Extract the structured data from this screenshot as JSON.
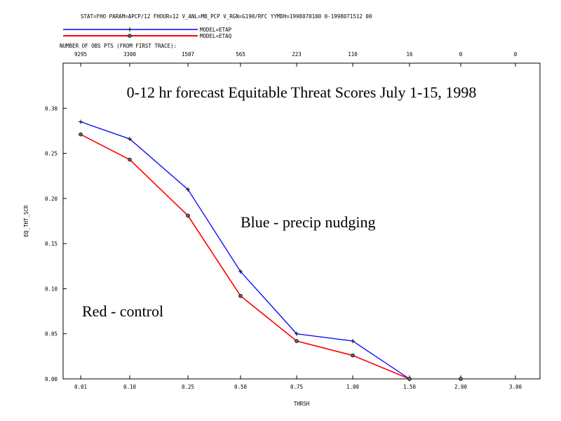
{
  "header_text": "STAT=FHO PARAM=APCP/12 FHOUR=12 V_ANL=MB_PCP V_RGN=G190/RFC YYMDH=1998070100 0-1998071512 00",
  "legend": [
    {
      "label": "MODEL=ETAP",
      "color": "#0000ff",
      "marker": "plus"
    },
    {
      "label": "MODEL=ETAQ",
      "color": "#ff0000",
      "marker": "circle"
    }
  ],
  "obs_header": "NUMBER OF OBS PTS (FROM FIRST TRACE):",
  "obs_counts": [
    "9295",
    "3300",
    "1507",
    "565",
    "223",
    "110",
    "16",
    "0",
    "0"
  ],
  "annotations": {
    "blue_note": "Blue - precip nudging",
    "red_note": "Red - control"
  },
  "chart_data": {
    "type": "line",
    "title": "0-12 hr forecast Equitable Threat Scores July 1-15, 1998",
    "xlabel": "THRSH",
    "ylabel": "EQ_THT_SCR",
    "categories": [
      "0.01",
      "0.10",
      "0.25",
      "0.50",
      "0.75",
      "1.00",
      "1.50",
      "2.00",
      "3.00"
    ],
    "ylim": [
      0,
      0.35
    ],
    "yticks": [
      "0.00",
      "0.05",
      "0.10",
      "0.15",
      "0.20",
      "0.25",
      "0.30"
    ],
    "grid": false,
    "series": [
      {
        "name": "MODEL=ETAP",
        "color": "#0000ff",
        "marker": "plus",
        "values": [
          0.285,
          0.266,
          0.21,
          0.119,
          0.05,
          0.042,
          0.0,
          null,
          null
        ]
      },
      {
        "name": "MODEL=ETAQ",
        "color": "#ff0000",
        "marker": "circle",
        "values": [
          0.271,
          0.243,
          0.181,
          0.092,
          0.042,
          0.026,
          0.0,
          0.0,
          null
        ]
      }
    ]
  }
}
